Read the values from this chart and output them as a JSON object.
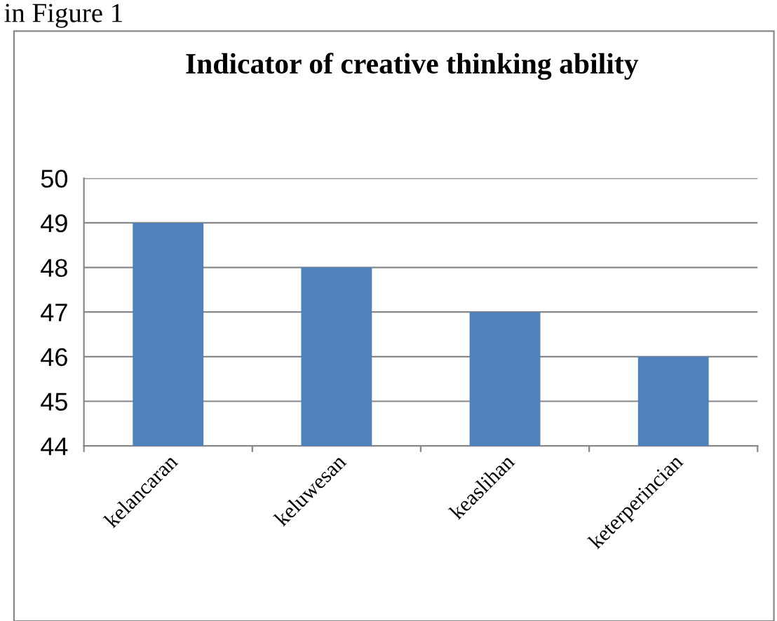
{
  "chart_data": {
    "type": "bar",
    "title": "Indicator of creative thinking ability",
    "annotations": [
      "in Figure 1"
    ],
    "categories": [
      "kelancaran",
      "keluwesan",
      "keaslihan",
      "keterperincian"
    ],
    "values": [
      49,
      48,
      47,
      46
    ],
    "color": "#4f81bd",
    "ylim": [
      44,
      50
    ],
    "yticks": [
      44,
      45,
      46,
      47,
      48,
      49,
      50
    ],
    "grid": "y",
    "legend": false
  }
}
